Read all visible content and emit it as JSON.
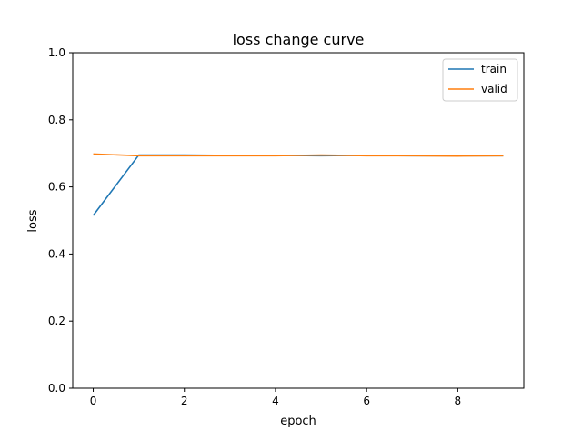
{
  "chart_data": {
    "type": "line",
    "title": "loss change curve",
    "xlabel": "epoch",
    "ylabel": "loss",
    "xlim": [
      -0.45,
      9.45
    ],
    "ylim": [
      0.0,
      1.0
    ],
    "xticks": [
      0,
      2,
      4,
      6,
      8
    ],
    "xtick_labels": [
      "0",
      "2",
      "4",
      "6",
      "8"
    ],
    "yticks": [
      0.0,
      0.2,
      0.4,
      0.6,
      0.8,
      1.0
    ],
    "ytick_labels": [
      "0.0",
      "0.2",
      "0.4",
      "0.6",
      "0.8",
      "1.0"
    ],
    "grid": false,
    "legend_position": "top-right",
    "x": [
      0,
      1,
      2,
      3,
      4,
      5,
      6,
      7,
      8,
      9
    ],
    "series": [
      {
        "name": "train",
        "color": "#1f77b4",
        "values": [
          0.515,
          0.695,
          0.695,
          0.694,
          0.694,
          0.693,
          0.694,
          0.693,
          0.693,
          0.693
        ]
      },
      {
        "name": "valid",
        "color": "#ff7f0e",
        "values": [
          0.698,
          0.693,
          0.693,
          0.693,
          0.693,
          0.695,
          0.693,
          0.693,
          0.692,
          0.693
        ]
      }
    ]
  }
}
